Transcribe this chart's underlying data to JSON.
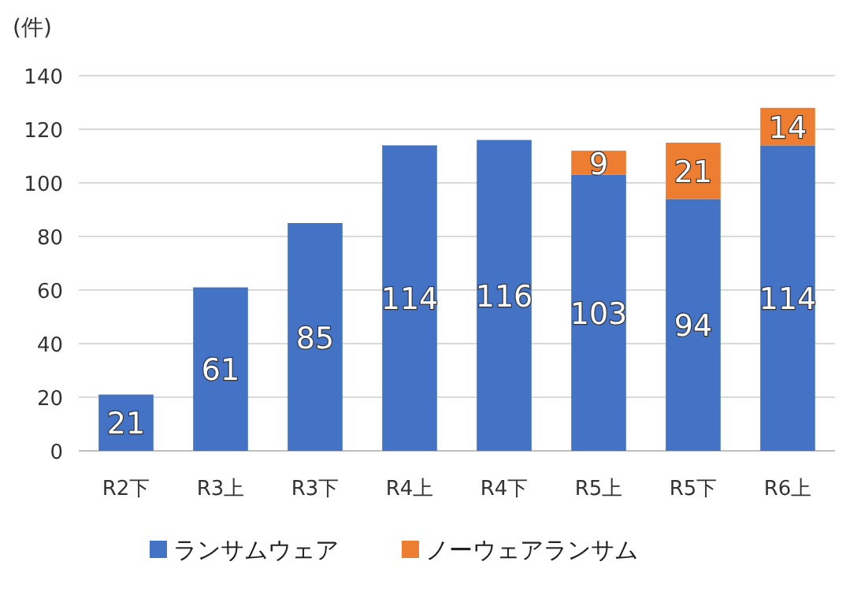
{
  "chart_data": {
    "type": "bar",
    "stacked": true,
    "ylabel": "(件)",
    "categories": [
      "R2下",
      "R3上",
      "R3下",
      "R4上",
      "R4下",
      "R5上",
      "R5下",
      "R6上"
    ],
    "series": [
      {
        "name": "ランサムウェア",
        "color": "#4472c4",
        "values": [
          21,
          61,
          85,
          114,
          116,
          103,
          94,
          114
        ]
      },
      {
        "name": "ノーウェアランサム",
        "color": "#ed7d31",
        "values": [
          null,
          null,
          null,
          null,
          null,
          9,
          21,
          14
        ]
      }
    ],
    "ylim": [
      0,
      140
    ],
    "yticks": [
      0,
      20,
      40,
      60,
      80,
      100,
      120,
      140
    ],
    "grid": "y",
    "legend": "bottom",
    "data_labels": true
  }
}
